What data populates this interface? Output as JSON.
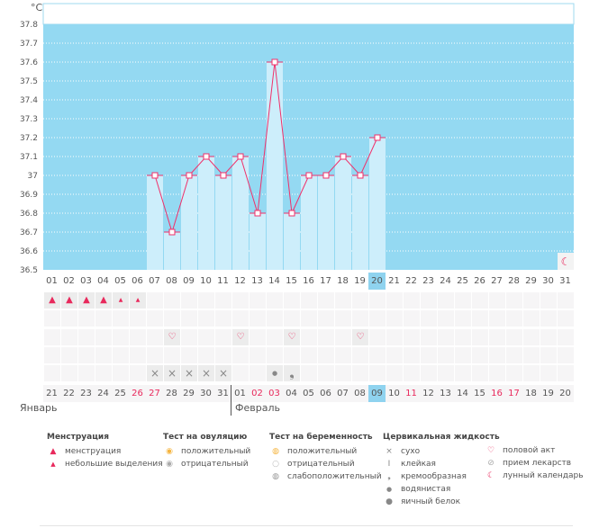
{
  "chart_data": {
    "type": "bar+line",
    "unit_label": "°C",
    "ylim": [
      36.5,
      37.8
    ],
    "yticks": [
      "36.5",
      "36.6",
      "36.7",
      "36.8",
      "36.9",
      "37",
      "37.1",
      "37.2",
      "37.3",
      "37.4",
      "37.5",
      "37.6",
      "37.7",
      "37.8"
    ],
    "cycle_days": [
      "01",
      "02",
      "03",
      "04",
      "05",
      "06",
      "07",
      "08",
      "09",
      "10",
      "11",
      "12",
      "13",
      "14",
      "15",
      "16",
      "17",
      "18",
      "19",
      "20",
      "21",
      "22",
      "23",
      "24",
      "25",
      "26",
      "27",
      "28",
      "29",
      "30",
      "31"
    ],
    "dates": [
      "21",
      "22",
      "23",
      "24",
      "25",
      "26",
      "27",
      "28",
      "29",
      "30",
      "31",
      "01",
      "02",
      "03",
      "04",
      "05",
      "06",
      "07",
      "08",
      "09",
      "10",
      "11",
      "12",
      "13",
      "14",
      "15",
      "16",
      "17",
      "18",
      "19",
      "20"
    ],
    "weekend_dates_idx": [
      5,
      6,
      12,
      13,
      21,
      26,
      27
    ],
    "today_idx": 19,
    "temperatures": [
      null,
      null,
      null,
      null,
      null,
      null,
      37.0,
      36.7,
      37.0,
      37.1,
      37.0,
      37.1,
      36.8,
      37.6,
      36.8,
      37.0,
      37.0,
      37.1,
      37.0,
      37.2,
      null,
      null,
      null,
      null,
      null,
      null,
      null,
      null,
      null,
      null,
      null
    ],
    "months": [
      "Январь",
      "Февраль"
    ],
    "menstruation": {
      "heavy": [
        1,
        2,
        3,
        4
      ],
      "light": [
        5,
        6
      ]
    },
    "intercourse_days": [
      8,
      12,
      15,
      19
    ],
    "cervical": {
      "dry": [
        7,
        8,
        9,
        10,
        11
      ],
      "watery": [
        14
      ],
      "creamy": [
        15
      ]
    },
    "moon_day": 31
  },
  "legend": {
    "menstruation": {
      "title": "Менструация",
      "items": [
        "менструация",
        "небольшие выделения"
      ]
    },
    "ovulation": {
      "title": "Тест на овуляцию",
      "items": [
        "положительный",
        "отрицательный"
      ]
    },
    "pregnancy": {
      "title": "Тест на беременность",
      "items": [
        "положительный",
        "отрицательный",
        "слабоположительный"
      ]
    },
    "cervical": {
      "title": "Цервикальная жидкость",
      "items": [
        "сухо",
        "клейкая",
        "кремообразная",
        "водянистая",
        "яичный белок"
      ]
    },
    "other": {
      "items": [
        "половой акт",
        "прием лекарств",
        "лунный календарь"
      ]
    }
  },
  "colors": {
    "bg": "#94d9f2",
    "bar": "#cdeefb",
    "line": "#f0306a",
    "red": "#e8295c"
  }
}
